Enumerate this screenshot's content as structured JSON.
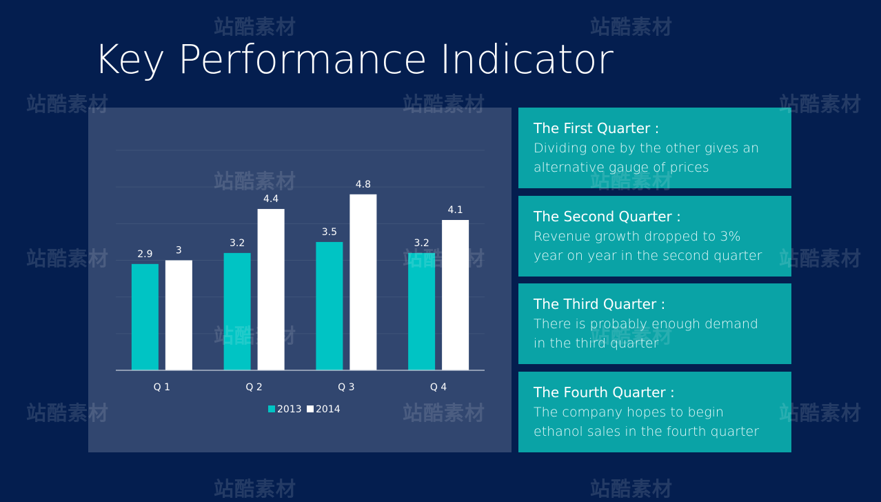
{
  "page": {
    "title": "Key Performance Indicator"
  },
  "colors": {
    "background": "#041e4f",
    "panel": "#31466f",
    "series_2013": "#00c4c4",
    "series_2014": "#ffffff",
    "card": "#0aa3a6"
  },
  "chart_data": {
    "type": "bar",
    "categories": [
      "Q 1",
      "Q 2",
      "Q 3",
      "Q 4"
    ],
    "series": [
      {
        "name": "2013",
        "values": [
          2.9,
          3.2,
          3.5,
          3.2
        ],
        "labels": [
          "2.9",
          "3.2",
          "3.5",
          "3.2"
        ],
        "color": "#00c4c4"
      },
      {
        "name": "2014",
        "values": [
          3,
          4.4,
          4.8,
          4.1
        ],
        "labels": [
          "3",
          "4.4",
          "4.8",
          "4.1"
        ],
        "color": "#ffffff"
      }
    ],
    "ylim": [
      0,
      6
    ],
    "grid": true,
    "legend": "bottom-center",
    "title": "",
    "xlabel": "",
    "ylabel": ""
  },
  "cards": [
    {
      "heading": "The First Quarter :",
      "lines": [
        "Dividing one by the other gives an",
        "alternative gauge of prices"
      ]
    },
    {
      "heading": "The Second Quarter :",
      "lines": [
        "Revenue growth dropped to 3%",
        "year on year in the second quarter"
      ]
    },
    {
      "heading": "The Third Quarter :",
      "lines": [
        "There is probably enough demand",
        "in the third quarter"
      ]
    },
    {
      "heading": "The Fourth Quarter :",
      "lines": [
        "The company hopes to begin",
        "ethanol sales in the fourth quarter"
      ]
    }
  ],
  "watermark": {
    "text": "站酷素材"
  }
}
